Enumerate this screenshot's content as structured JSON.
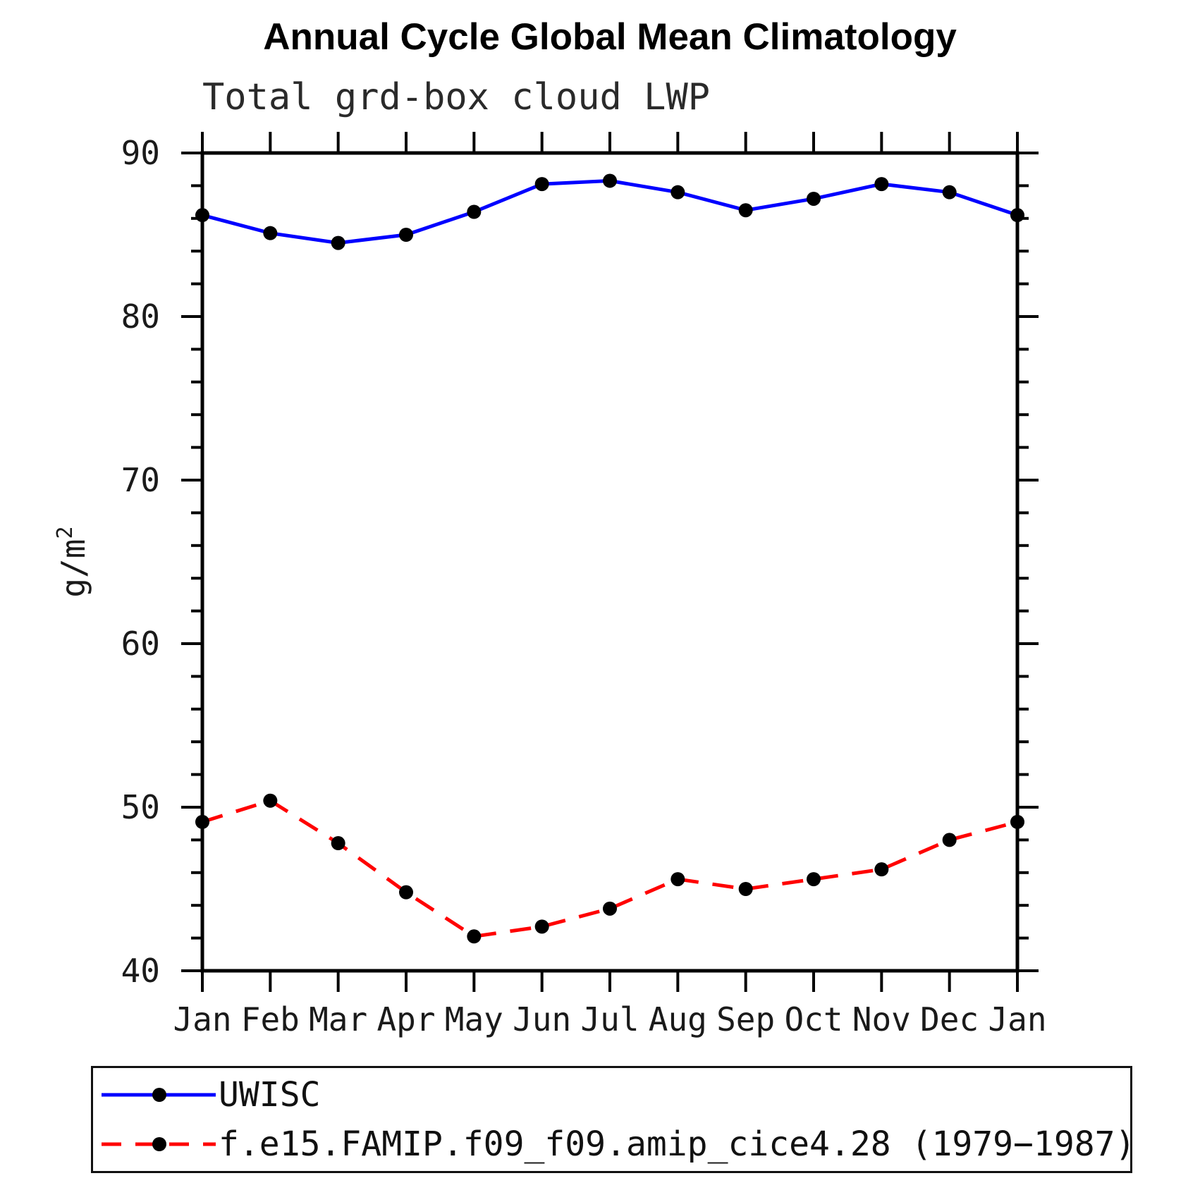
{
  "figure": {
    "title": "Annual Cycle Global Mean Climatology",
    "subtitle": "Total grd-box cloud LWP"
  },
  "chart_data": {
    "type": "line",
    "title": "Annual Cycle Global Mean Climatology",
    "subtitle": "Total grd-box cloud LWP",
    "xlabel": "",
    "ylabel": "g/m²",
    "ylabel_base": "g/m",
    "ylabel_exponent": "2",
    "categories": [
      "Jan",
      "Feb",
      "Mar",
      "Apr",
      "May",
      "Jun",
      "Jul",
      "Aug",
      "Sep",
      "Oct",
      "Nov",
      "Dec",
      "Jan"
    ],
    "ylim": [
      40,
      90
    ],
    "ytick_major": [
      40,
      50,
      60,
      70,
      80,
      90
    ],
    "ytick_minor_step": 2,
    "grid": false,
    "legend_position": "bottom",
    "series": [
      {
        "name": "UWISC",
        "color": "#0000ff",
        "line_style": "solid",
        "marker": "filled-circle",
        "marker_color": "#000000",
        "values": [
          86.2,
          85.1,
          84.5,
          85.0,
          86.4,
          88.1,
          88.3,
          87.6,
          86.5,
          87.2,
          88.1,
          87.6,
          86.2
        ]
      },
      {
        "name": "f.e15.FAMIP.f09_f09.amip_cice4.28 (1979−1987)",
        "color": "#ff0000",
        "line_style": "dashed",
        "marker": "filled-circle",
        "marker_color": "#000000",
        "values": [
          49.1,
          50.4,
          47.8,
          44.8,
          42.1,
          42.7,
          43.8,
          45.6,
          45.0,
          45.6,
          46.2,
          48.0,
          49.1
        ]
      }
    ]
  }
}
